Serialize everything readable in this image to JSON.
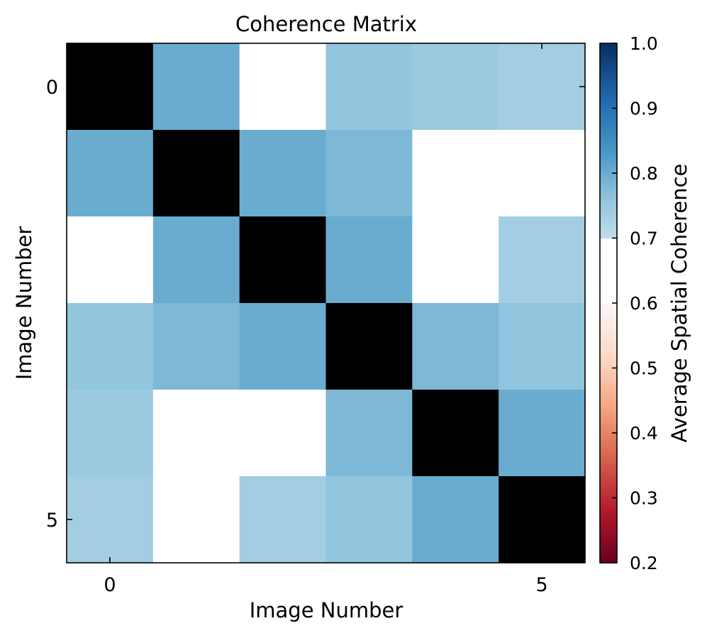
{
  "chart_data": {
    "type": "heatmap",
    "title": "Coherence Matrix",
    "xlabel": "Image Number",
    "ylabel": "Image Number",
    "x_ticks": [
      0,
      5
    ],
    "y_ticks": [
      0,
      5
    ],
    "rows": 6,
    "cols": 6,
    "values": [
      [
        null,
        0.8,
        0.65,
        0.76,
        0.75,
        0.74
      ],
      [
        0.8,
        null,
        0.8,
        0.78,
        0.65,
        0.65
      ],
      [
        0.65,
        0.8,
        null,
        0.8,
        0.65,
        0.74
      ],
      [
        0.76,
        0.78,
        0.8,
        null,
        0.78,
        0.76
      ],
      [
        0.75,
        0.65,
        0.65,
        0.78,
        null,
        0.8
      ],
      [
        0.74,
        0.65,
        0.74,
        0.76,
        0.8,
        null
      ]
    ],
    "colorbar": {
      "label": "Average Spatial Coherence",
      "range": [
        0.2,
        1.0
      ],
      "ticks": [
        0.2,
        0.3,
        0.4,
        0.5,
        0.6,
        0.7,
        0.8,
        0.9,
        1.0
      ],
      "tick_labels": [
        "0.2",
        "0.3",
        "0.4",
        "0.5",
        "0.6",
        "0.7",
        "0.8",
        "0.9",
        "1.0"
      ],
      "colormap": "RdBu",
      "white_band": [
        0.6,
        0.7
      ],
      "diagonal_color": "#000000"
    }
  }
}
